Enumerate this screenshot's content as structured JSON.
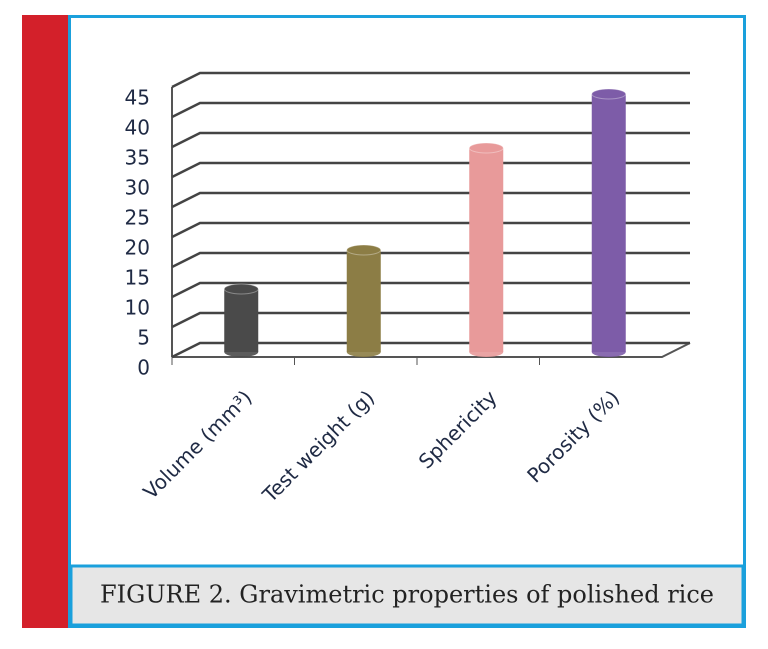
{
  "chart_data": {
    "type": "bar3d",
    "caption": "FIGURE 2. Gravimetric properties of polished rice",
    "categories": [
      "Volume (mm³)",
      "Test weight (g)",
      "Sphericity",
      "Porosity (%)"
    ],
    "values": [
      10.5,
      17,
      34,
      43
    ],
    "colors": [
      "#4a4a4a",
      "#8c7d45",
      "#e89a9a",
      "#7d5ca8"
    ],
    "ylim": [
      0,
      45
    ],
    "yticks": [
      0,
      5,
      10,
      15,
      20,
      25,
      30,
      35,
      40,
      45
    ],
    "grid": true
  }
}
